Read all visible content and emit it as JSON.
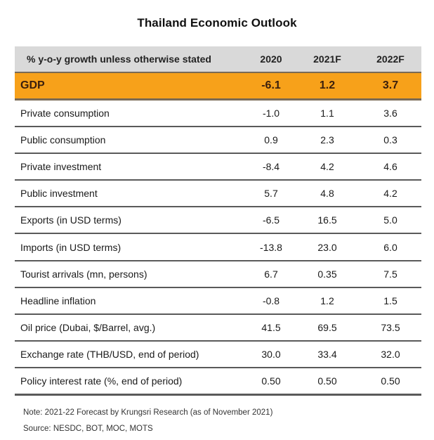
{
  "title": "Thailand Economic Outlook",
  "table": {
    "header": {
      "label": "% y-o-y  growth unless otherwise stated",
      "columns": [
        "2020",
        "2021F",
        "2022F"
      ]
    },
    "highlight_color": "#f7a11a",
    "header_color": "#d9d9d9",
    "rows": [
      {
        "label": "GDP",
        "values": [
          "-6.1",
          "1.2",
          "3.7"
        ],
        "highlight": true
      },
      {
        "label": "Private consumption",
        "values": [
          "-1.0",
          "1.1",
          "3.6"
        ]
      },
      {
        "label": "Public consumption",
        "values": [
          "0.9",
          "2.3",
          "0.3"
        ]
      },
      {
        "label": "Private investment",
        "values": [
          "-8.4",
          "4.2",
          "4.6"
        ]
      },
      {
        "label": "Public investment",
        "values": [
          "5.7",
          "4.8",
          "4.2"
        ]
      },
      {
        "label": "Exports (in USD terms)",
        "values": [
          "-6.5",
          "16.5",
          "5.0"
        ]
      },
      {
        "label": "Imports (in USD terms)",
        "values": [
          "-13.8",
          "23.0",
          "6.0"
        ]
      },
      {
        "label": "Tourist arrivals (mn, persons)",
        "values": [
          "6.7",
          "0.35",
          "7.5"
        ]
      },
      {
        "label": "Headline inflation",
        "values": [
          "-0.8",
          "1.2",
          "1.5"
        ]
      },
      {
        "label": "Oil price (Dubai, $/Barrel, avg.)",
        "values": [
          "41.5",
          "69.5",
          "73.5"
        ]
      },
      {
        "label": "Exchange rate (THB/USD, end of period)",
        "values": [
          "30.0",
          "33.4",
          "32.0"
        ]
      },
      {
        "label": "Policy interest rate (%, end of period)",
        "values": [
          "0.50",
          "0.50",
          "0.50"
        ]
      }
    ]
  },
  "notes": {
    "note": "Note: 2021-22 Forecast by Krungsri Research (as of November 2021)",
    "source": "Source: NESDC, BOT, MOC, MOTS"
  }
}
